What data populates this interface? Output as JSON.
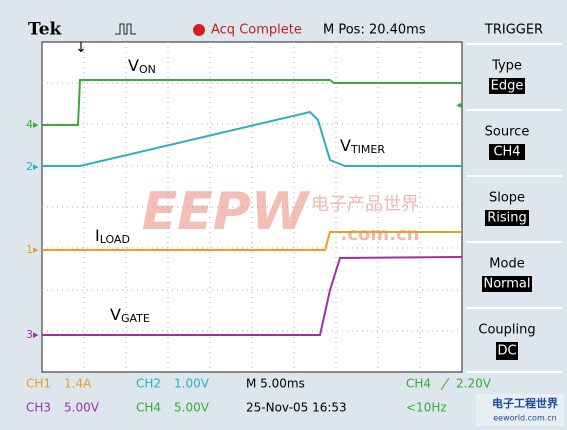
{
  "header": {
    "brand": "Tek",
    "status": "Acq Complete",
    "position": "M Pos: 20.40ms"
  },
  "traces": [
    {
      "marker": "4",
      "name": "V",
      "subscript": "ON"
    },
    {
      "marker": "2",
      "name": "V",
      "subscript": "TIMER"
    },
    {
      "marker": "1",
      "name": "I",
      "subscript": "LOAD"
    },
    {
      "marker": "3",
      "name": "V",
      "subscript": "GATE"
    }
  ],
  "menu": {
    "title": "TRIGGER",
    "items": [
      {
        "label": "Type",
        "value": "Edge"
      },
      {
        "label": "Source",
        "value": "CH4"
      },
      {
        "label": "Slope",
        "value": "Rising"
      },
      {
        "label": "Mode",
        "value": "Normal"
      },
      {
        "label": "Coupling",
        "value": "DC"
      }
    ]
  },
  "footer": {
    "ch1": "CH1",
    "ch1_scale": "1.4A",
    "ch2": "CH2",
    "ch2_scale": "1.00V",
    "timebase": "M 5.00ms",
    "trig_ch": "CH4",
    "trig_level": "2.20V",
    "ch3": "CH3",
    "ch3_scale": "5.00V",
    "ch4": "CH4",
    "ch4_scale": "5.00V",
    "date": "25-Nov-05 16:53",
    "freq": "<10Hz"
  },
  "watermark": {
    "logo": "EEPW",
    "chinese": "电子产品世界",
    "domain": ".com.cn",
    "corner_cn": "电子工程世界",
    "corner_url": "eeworld.com.cn"
  }
}
